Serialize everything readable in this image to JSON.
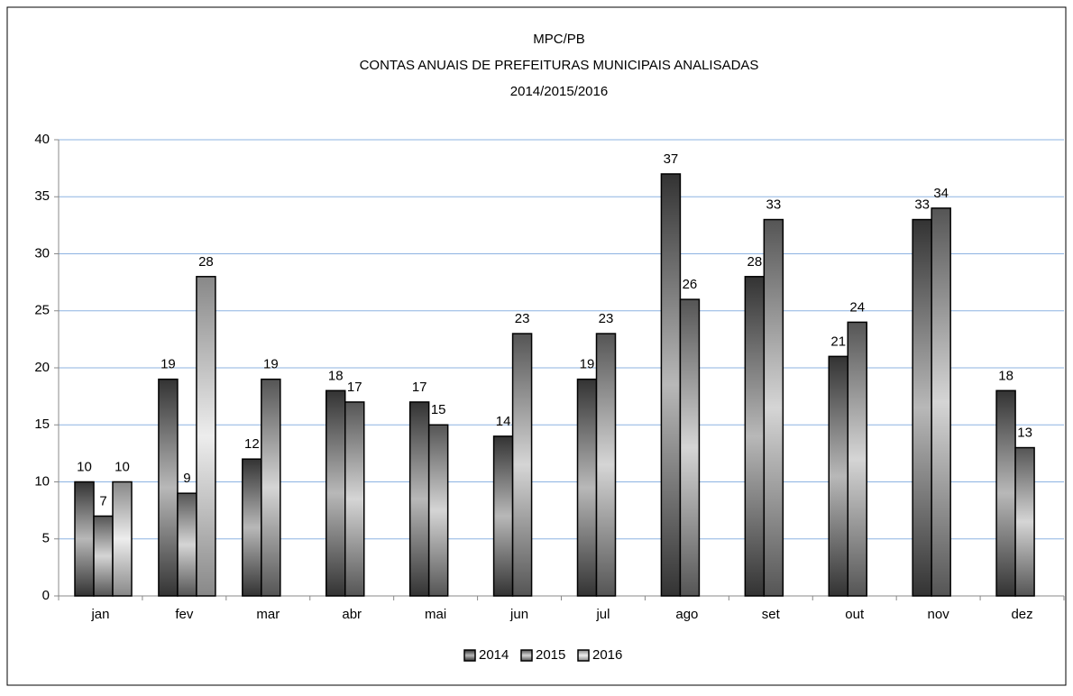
{
  "chart_data": {
    "type": "bar",
    "title": [
      "MPC/PB",
      "CONTAS ANUAIS DE PREFEITURAS MUNICIPAIS ANALISADAS",
      "2014/2015/2016"
    ],
    "categories": [
      "jan",
      "fev",
      "mar",
      "abr",
      "mai",
      "jun",
      "jul",
      "ago",
      "set",
      "out",
      "nov",
      "dez"
    ],
    "series": [
      {
        "name": "2014",
        "color": "#333333",
        "values": [
          10,
          19,
          12,
          18,
          17,
          14,
          19,
          37,
          28,
          21,
          33,
          18
        ]
      },
      {
        "name": "2015",
        "color": "#555555",
        "values": [
          7,
          9,
          19,
          17,
          15,
          23,
          23,
          26,
          33,
          24,
          34,
          13
        ]
      },
      {
        "name": "2016",
        "color": "#888888",
        "values": [
          10,
          28,
          null,
          null,
          null,
          null,
          null,
          null,
          null,
          null,
          null,
          null
        ]
      }
    ],
    "ylim": [
      0,
      40
    ],
    "yticks": [
      0,
      5,
      10,
      15,
      20,
      25,
      30,
      35,
      40
    ],
    "grid": true,
    "legend": "bottom"
  }
}
